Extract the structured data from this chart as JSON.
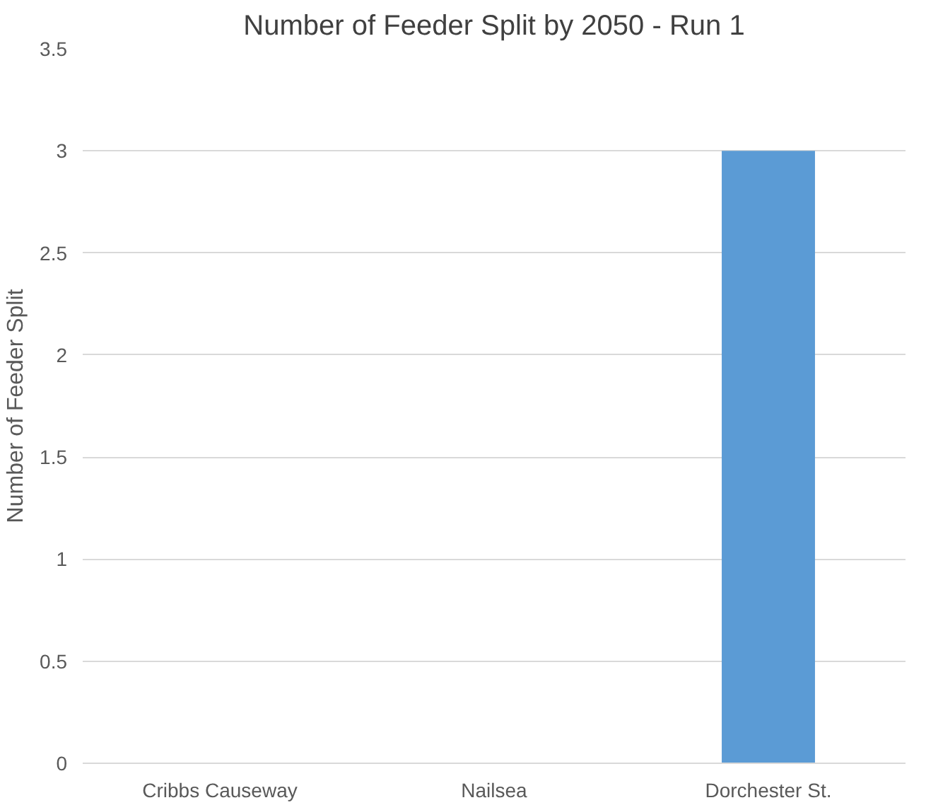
{
  "chart_data": {
    "type": "bar",
    "title": "Number of Feeder Split by 2050 - Run 1",
    "ylabel": "Number of Feeder Split",
    "categories": [
      "Cribbs Causeway",
      "Nailsea",
      "Dorchester St."
    ],
    "values": [
      0,
      0,
      3
    ],
    "color": "#5b9bd5",
    "ylim": [
      0,
      3.5
    ],
    "yticks": [
      0,
      0.5,
      1,
      1.5,
      2,
      2.5,
      3,
      3.5
    ],
    "grid": "y"
  }
}
